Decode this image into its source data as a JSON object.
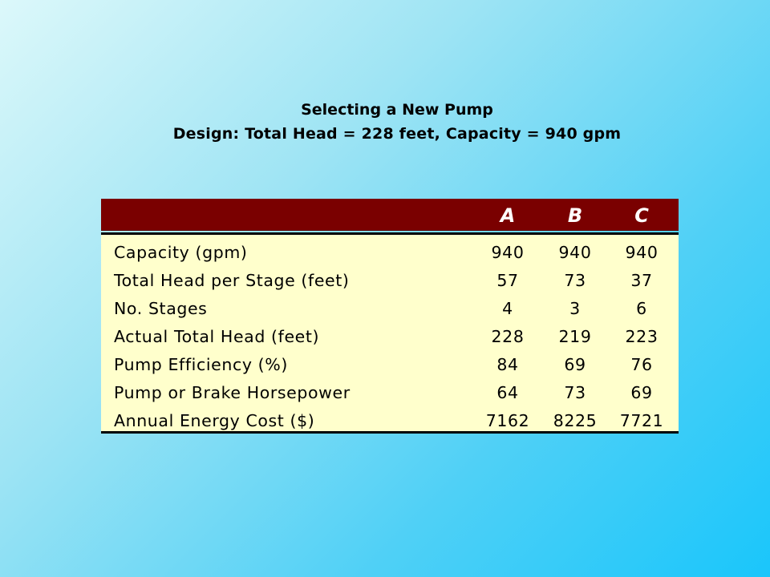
{
  "title": {
    "line1": "Selecting a New Pump",
    "line2": "Design: Total Head = 228 feet, Capacity = 940 gpm"
  },
  "table": {
    "columns": [
      "A",
      "B",
      "C"
    ],
    "rows": [
      {
        "label": "Capacity (gpm)",
        "values": [
          "940",
          "940",
          "940"
        ]
      },
      {
        "label": "Total Head per Stage (feet)",
        "values": [
          "57",
          "73",
          "37"
        ]
      },
      {
        "label": "No. Stages",
        "values": [
          "4",
          "3",
          "6"
        ]
      },
      {
        "label": "Actual Total Head (feet)",
        "values": [
          "228",
          "219",
          "223"
        ]
      },
      {
        "label": "Pump Efficiency (%)",
        "values": [
          "84",
          "69",
          "76"
        ]
      },
      {
        "label": "Pump or Brake Horsepower",
        "values": [
          "64",
          "73",
          "69"
        ]
      },
      {
        "label": "Annual Energy Cost ($)",
        "values": [
          "7162",
          "8225",
          "7721"
        ]
      }
    ]
  },
  "colors": {
    "header_bg": "#7a0000",
    "body_bg": "#ffffcc",
    "header_text": "#ffffff",
    "text": "#000000"
  }
}
